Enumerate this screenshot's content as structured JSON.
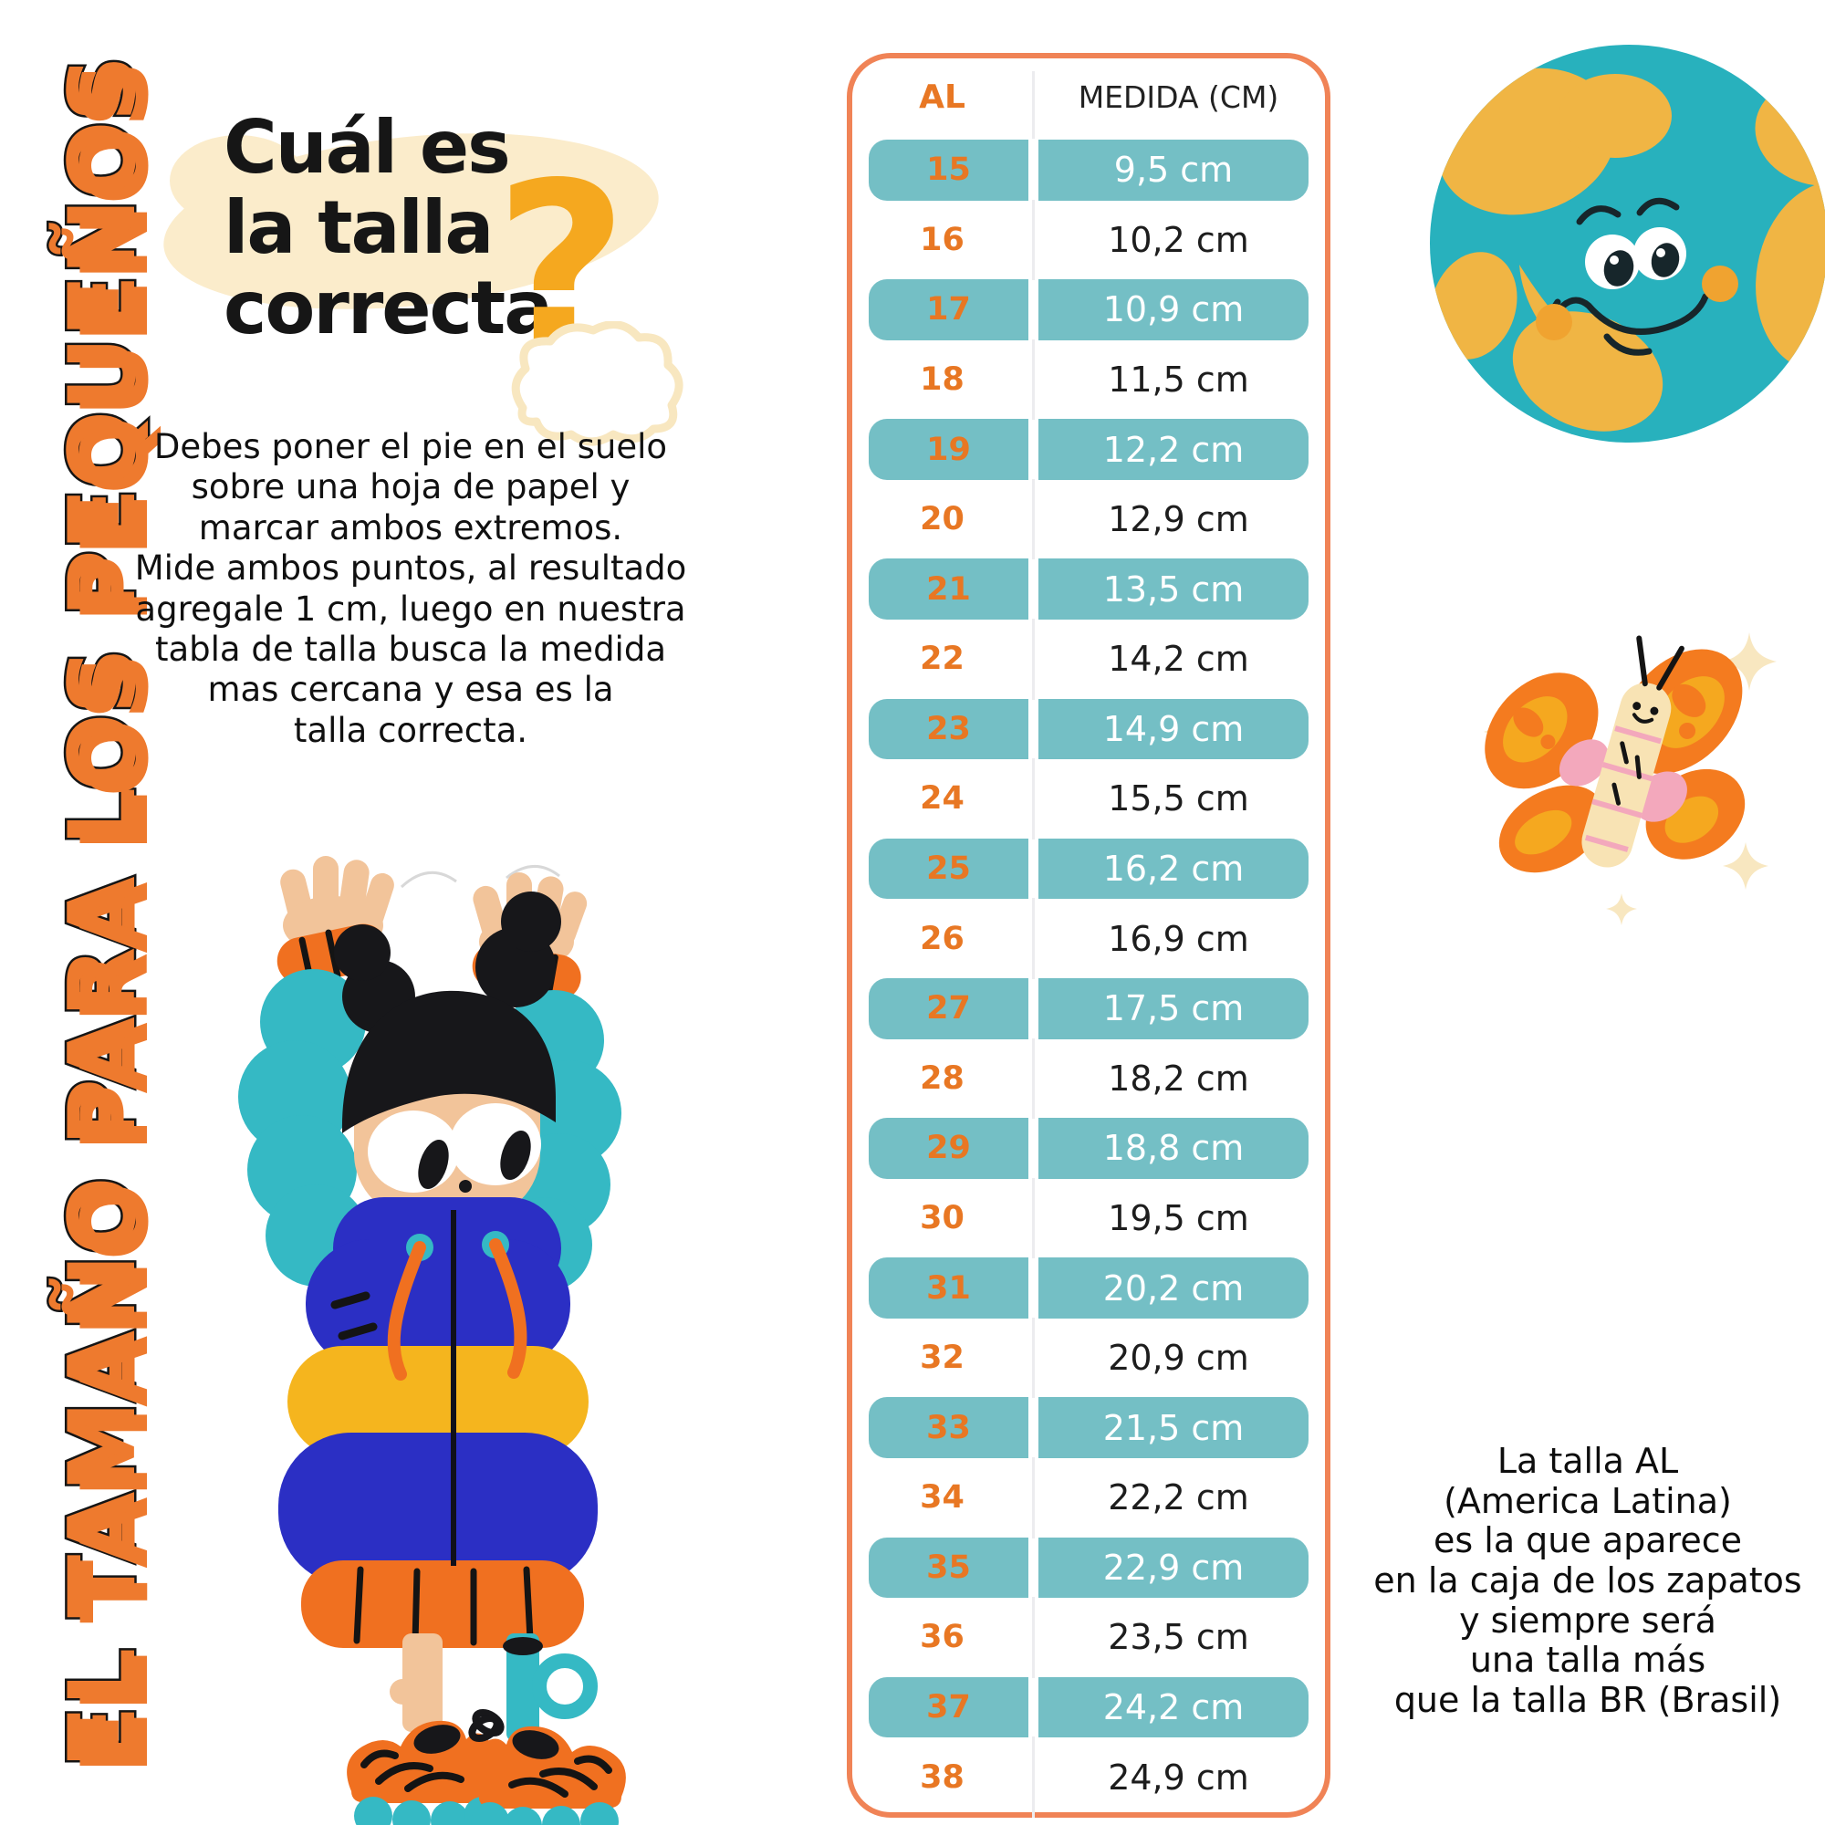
{
  "banner": {
    "text": "EL TAMAÑO PARA LOS PEQUEÑOS"
  },
  "title": {
    "text": "Cuál es\nla talla\ncorrecta",
    "question_mark": "?"
  },
  "intro": {
    "text": "Debes poner el pie en el suelo\nsobre una hoja de papel y\nmarcar ambos extremos.\nMide ambos puntos, al resultado\nagregale 1 cm, luego en nuestra\ntabla de talla busca la medida\nmas cercana y esa es la\ntalla correcta."
  },
  "table": {
    "header": {
      "size_col": "AL",
      "measure_col": "MEDIDA (CM)"
    },
    "rows": [
      {
        "size": "15",
        "measure": "9,5 cm",
        "highlight": true
      },
      {
        "size": "16",
        "measure": "10,2 cm",
        "highlight": false
      },
      {
        "size": "17",
        "measure": "10,9 cm",
        "highlight": true
      },
      {
        "size": "18",
        "measure": "11,5 cm",
        "highlight": false
      },
      {
        "size": "19",
        "measure": "12,2 cm",
        "highlight": true
      },
      {
        "size": "20",
        "measure": "12,9 cm",
        "highlight": false
      },
      {
        "size": "21",
        "measure": "13,5 cm",
        "highlight": true
      },
      {
        "size": "22",
        "measure": "14,2 cm",
        "highlight": false
      },
      {
        "size": "23",
        "measure": "14,9 cm",
        "highlight": true
      },
      {
        "size": "24",
        "measure": "15,5 cm",
        "highlight": false
      },
      {
        "size": "25",
        "measure": "16,2 cm",
        "highlight": true
      },
      {
        "size": "26",
        "measure": "16,9 cm",
        "highlight": false
      },
      {
        "size": "27",
        "measure": "17,5 cm",
        "highlight": true
      },
      {
        "size": "28",
        "measure": "18,2 cm",
        "highlight": false
      },
      {
        "size": "29",
        "measure": "18,8 cm",
        "highlight": true
      },
      {
        "size": "30",
        "measure": "19,5 cm",
        "highlight": false
      },
      {
        "size": "31",
        "measure": "20,2 cm",
        "highlight": true
      },
      {
        "size": "32",
        "measure": "20,9 cm",
        "highlight": false
      },
      {
        "size": "33",
        "measure": "21,5 cm",
        "highlight": true
      },
      {
        "size": "34",
        "measure": "22,2 cm",
        "highlight": false
      },
      {
        "size": "35",
        "measure": "22,9 cm",
        "highlight": true
      },
      {
        "size": "36",
        "measure": "23,5 cm",
        "highlight": false
      },
      {
        "size": "37",
        "measure": "24,2 cm",
        "highlight": true
      },
      {
        "size": "38",
        "measure": "24,9 cm",
        "highlight": false
      }
    ]
  },
  "note": {
    "text": "La talla AL\n(America Latina)\nes la que aparece\nen la caja de los zapatos\ny siempre será\nuna talla más\nque la talla BR (Brasil)"
  },
  "colors": {
    "banner_orange": "#ee7a2e",
    "accent_orange": "#e87723",
    "table_border": "#f08356",
    "row_teal": "#74bfc5",
    "question_yellow": "#f5a81f",
    "title_black": "#161616"
  }
}
